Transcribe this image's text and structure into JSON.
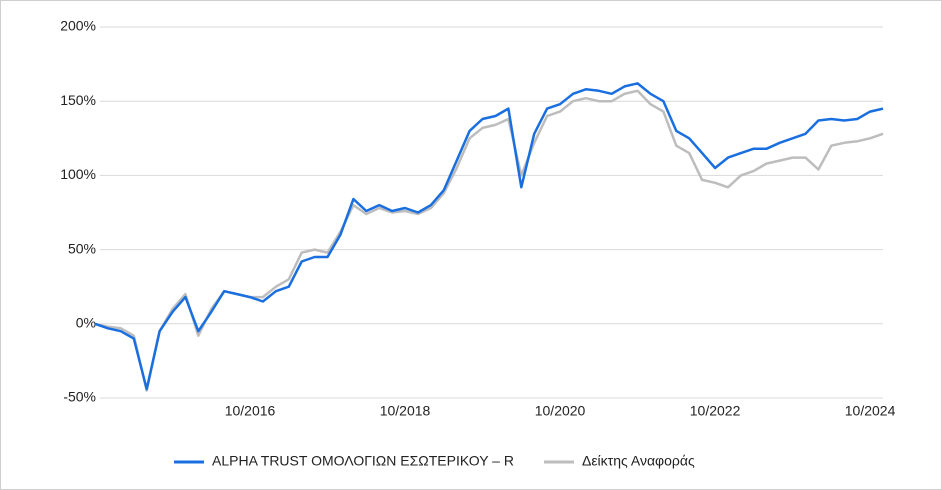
{
  "chart_data": {
    "type": "line",
    "categories": [
      null,
      null,
      null,
      null,
      null,
      null,
      null,
      null,
      null,
      null,
      null,
      null,
      "10/2016",
      null,
      null,
      null,
      null,
      null,
      null,
      null,
      null,
      null,
      null,
      null,
      "10/2018",
      null,
      null,
      null,
      null,
      null,
      null,
      null,
      null,
      null,
      null,
      null,
      "10/2020",
      null,
      null,
      null,
      null,
      null,
      null,
      null,
      null,
      null,
      null,
      null,
      "10/2022",
      null,
      null,
      null,
      null,
      null,
      null,
      null,
      null,
      null,
      null,
      null,
      "10/2024",
      null
    ],
    "series": [
      {
        "name": "ALPHA TRUST ΟΜΟΛΟΓΙΩΝ ΕΣΩΤΕΡΙΚΟΥ – R",
        "color": "#1a6fe0",
        "values": [
          0,
          -3,
          -5,
          -10,
          -44,
          -5,
          8,
          18,
          -5,
          8,
          22,
          20,
          18,
          15,
          22,
          25,
          42,
          45,
          45,
          60,
          84,
          76,
          80,
          76,
          78,
          75,
          80,
          90,
          110,
          130,
          138,
          140,
          145,
          92,
          128,
          145,
          148,
          155,
          158,
          157,
          155,
          160,
          162,
          155,
          150,
          130,
          125,
          115,
          105,
          112,
          115,
          118,
          118,
          122,
          125,
          128,
          137,
          138,
          137,
          138,
          143,
          145
        ]
      },
      {
        "name": "Δείκτης Αναφοράς",
        "color": "#bdbdbd",
        "values": [
          0,
          -2,
          -3,
          -8,
          -45,
          -5,
          10,
          20,
          -8,
          10,
          22,
          20,
          18,
          18,
          25,
          30,
          48,
          50,
          48,
          62,
          80,
          74,
          78,
          75,
          76,
          74,
          78,
          88,
          105,
          125,
          132,
          134,
          138,
          100,
          122,
          140,
          143,
          150,
          152,
          150,
          150,
          155,
          157,
          148,
          143,
          120,
          115,
          97,
          95,
          92,
          100,
          103,
          108,
          110,
          112,
          112,
          104,
          120,
          122,
          123,
          125,
          128
        ]
      }
    ],
    "ylim": [
      -50,
      200
    ],
    "yticks": [
      {
        "value": -50,
        "label": "-50%"
      },
      {
        "value": 0,
        "label": "0%"
      },
      {
        "value": 50,
        "label": "50%"
      },
      {
        "value": 100,
        "label": "100%"
      },
      {
        "value": 150,
        "label": "150%"
      },
      {
        "value": 200,
        "label": "200%"
      }
    ],
    "grid": true,
    "legend": "bottom"
  }
}
